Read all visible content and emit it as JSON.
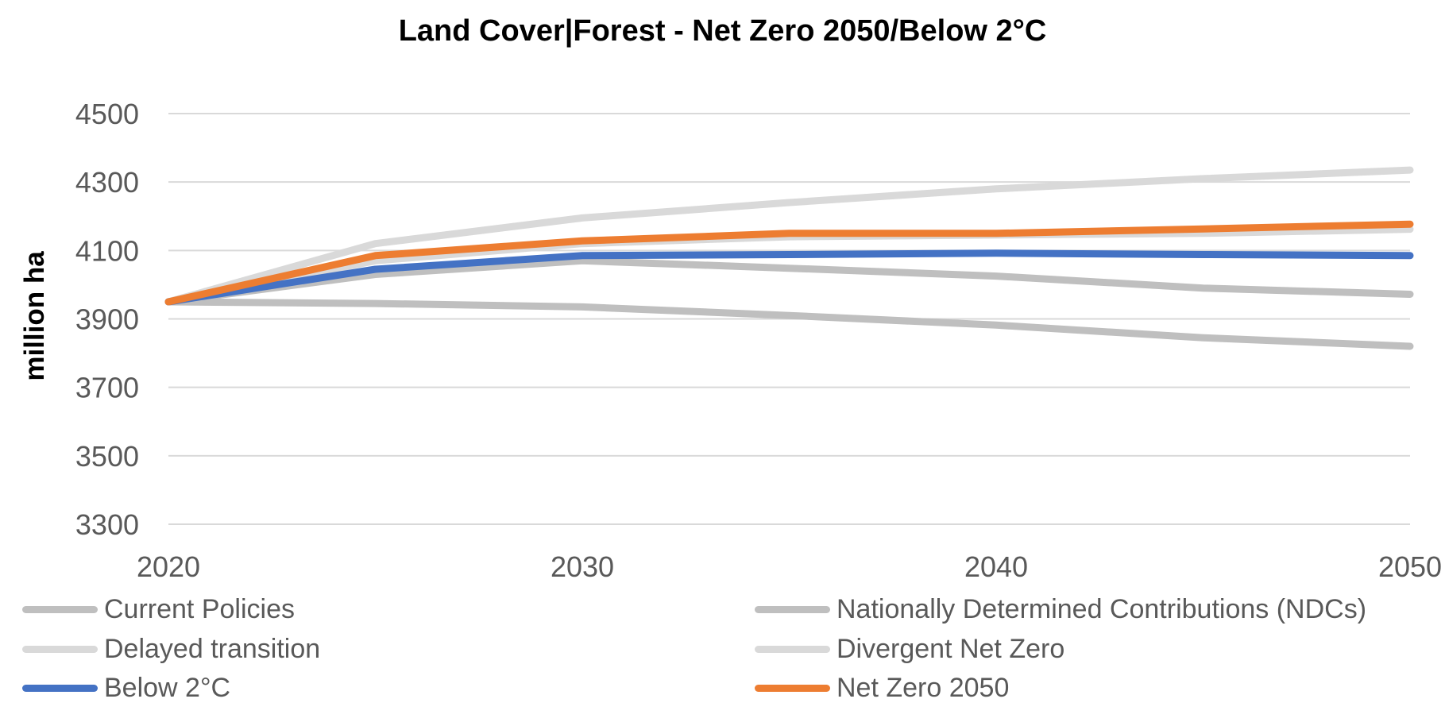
{
  "chart_data": {
    "type": "line",
    "title": "Land Cover|Forest - Net Zero 2050/Below 2°C",
    "xlabel": "",
    "ylabel": "million ha",
    "x": [
      2020,
      2025,
      2030,
      2035,
      2040,
      2045,
      2050
    ],
    "x_ticks": [
      "2020",
      "2030",
      "2040",
      "2050"
    ],
    "y_ticks": [
      "3300",
      "3500",
      "3700",
      "3900",
      "4100",
      "4300",
      "4500"
    ],
    "ylim": [
      3300,
      4500
    ],
    "xlim": [
      2020,
      2050
    ],
    "grid": "horizontal",
    "legend_position": "bottom",
    "series": [
      {
        "name": "Current Policies",
        "color": "#bfbfbf",
        "values": [
          3950,
          3945,
          3935,
          3910,
          3882,
          3845,
          3820
        ]
      },
      {
        "name": "Nationally Determined Contributions (NDCs)",
        "color": "#bfbfbf",
        "values": [
          3950,
          4030,
          4070,
          4048,
          4025,
          3990,
          3972
        ]
      },
      {
        "name": "Delayed transition",
        "color": "#d9d9d9",
        "values": [
          3950,
          4120,
          4195,
          4240,
          4280,
          4310,
          4335
        ]
      },
      {
        "name": "Divergent Net Zero",
        "color": "#d9d9d9",
        "values": [
          3950,
          4070,
          4120,
          4140,
          4145,
          4150,
          4162
        ]
      },
      {
        "name": "Below 2°C",
        "color": "#4472c4",
        "values": [
          3950,
          4045,
          4085,
          4088,
          4092,
          4088,
          4085
        ]
      },
      {
        "name": "Net Zero 2050",
        "color": "#ed7d31",
        "values": [
          3950,
          4085,
          4128,
          4150,
          4150,
          4163,
          4177
        ]
      }
    ]
  }
}
